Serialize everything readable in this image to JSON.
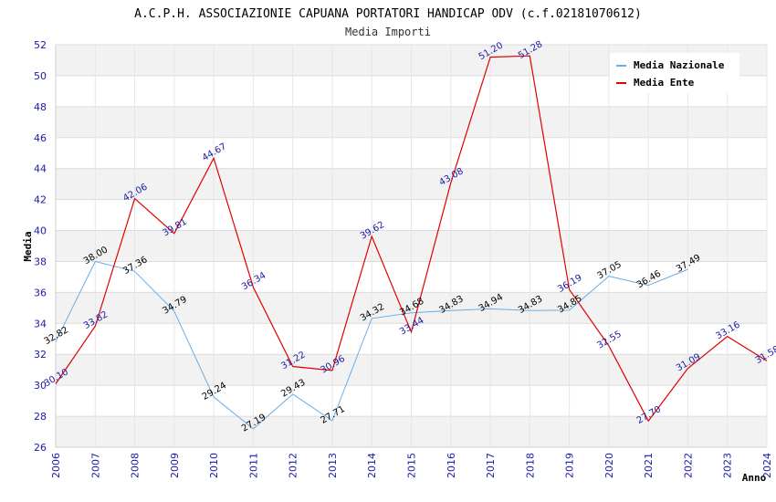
{
  "chart_data": {
    "type": "line",
    "title": "A.C.P.H. ASSOCIAZIONIE CAPUANA PORTATORI HANDICAP ODV (c.f.02181070612)",
    "subtitle": "Media Importi",
    "xlabel": "Anno",
    "ylabel": "Media",
    "ylim": [
      26,
      52
    ],
    "ytick_step": 2,
    "grid": true,
    "legend_position": "top-right",
    "x": [
      "2006",
      "2007",
      "2008",
      "2009",
      "2010",
      "2011",
      "2012",
      "2013",
      "2014",
      "2015",
      "2016",
      "2017",
      "2018",
      "2019",
      "2020",
      "2021",
      "2022",
      "2023",
      "2024"
    ],
    "series": [
      {
        "name": "Media Nazionale",
        "color": "#6aaee8",
        "label_color": "#000000",
        "values": [
          32.82,
          38.0,
          37.36,
          34.79,
          29.24,
          27.19,
          29.43,
          27.71,
          34.32,
          34.68,
          34.83,
          34.94,
          34.83,
          34.85,
          37.05,
          36.46,
          37.49,
          null,
          null
        ],
        "labels": [
          "32.82",
          "38.00",
          "37.36",
          "34.79",
          "29.24",
          "27.19",
          "29.43",
          "27.71",
          "34.32",
          "34.68",
          "34.83",
          "34.94",
          "34.83",
          "34.85",
          "37.05",
          "36.46",
          "37.49",
          null,
          null
        ]
      },
      {
        "name": "Media Ente",
        "color": "#e00000",
        "label_color": "#1a1aa6",
        "values": [
          30.1,
          33.82,
          42.06,
          39.81,
          44.67,
          36.34,
          31.22,
          30.96,
          39.62,
          33.44,
          43.08,
          51.2,
          51.28,
          36.19,
          32.55,
          27.7,
          31.09,
          33.16,
          31.58
        ],
        "labels": [
          "30.10",
          "33.82",
          "42.06",
          "39.81",
          "44.67",
          "36.34",
          "31.22",
          "30.96",
          "39.62",
          "33.44",
          "43.08",
          "51.20",
          "51.28",
          "36.19",
          "32.55",
          "27.70",
          "31.09",
          "33.16",
          "31.58"
        ]
      }
    ]
  }
}
